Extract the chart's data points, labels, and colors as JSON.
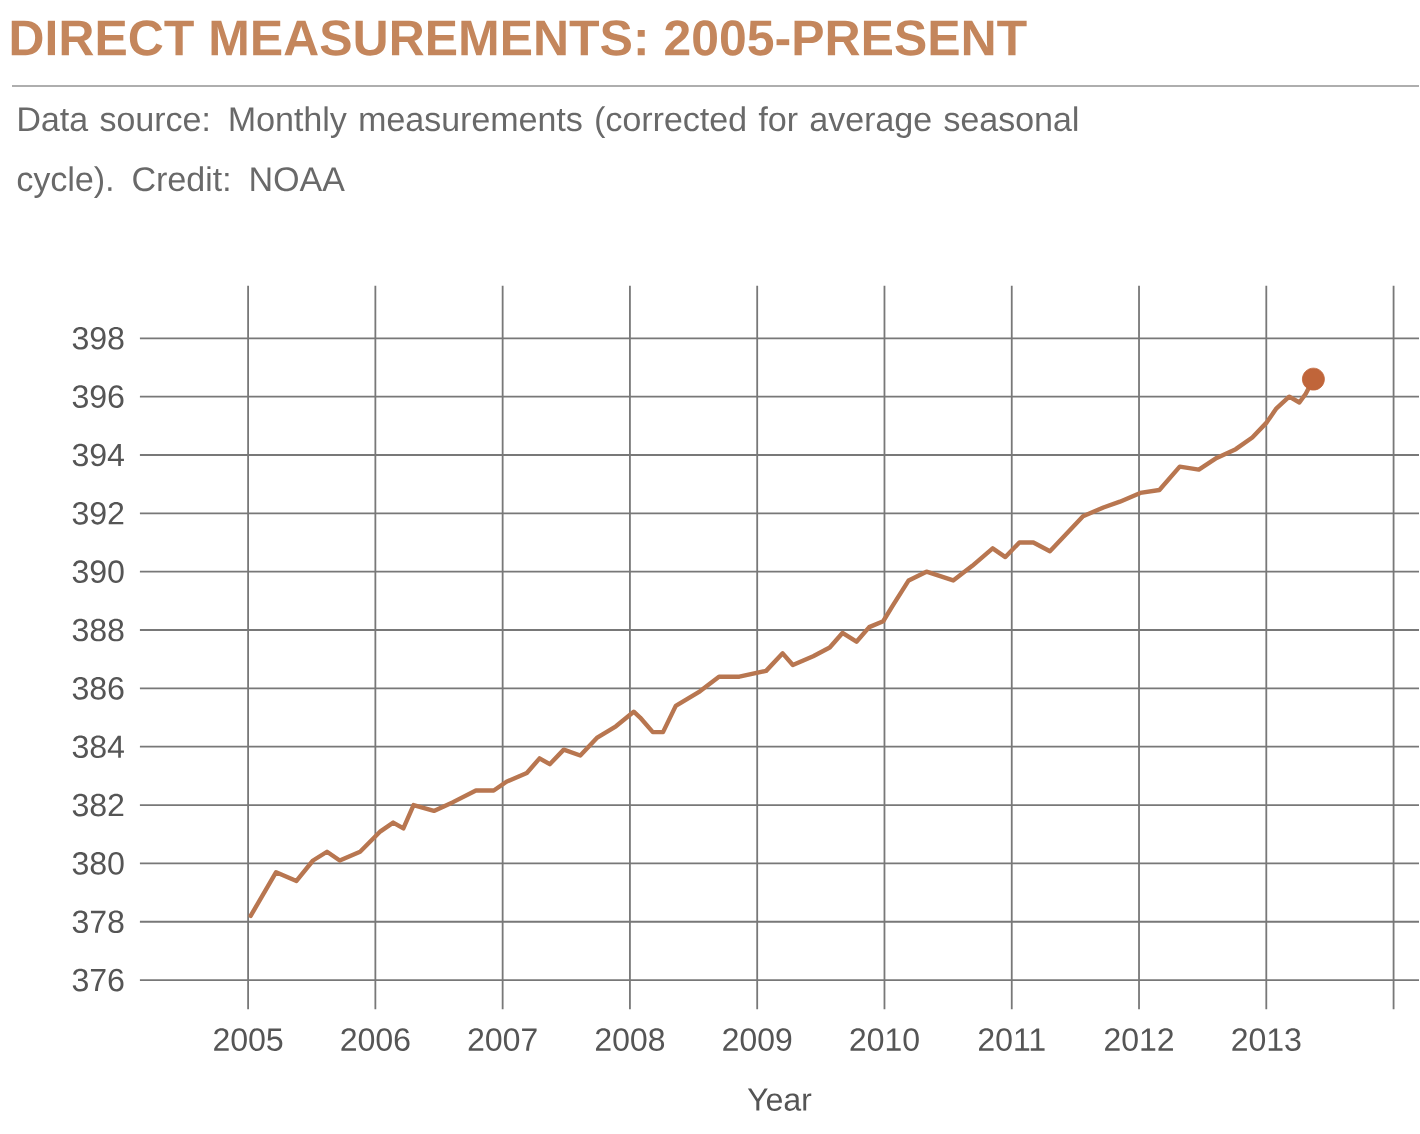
{
  "chart_data": {
    "type": "line",
    "title": "DIRECT MEASUREMENTS: 2005-PRESENT",
    "subtitle": "Data source: Monthly measurements (corrected for average seasonal cycle). Credit: NOAA",
    "xlabel": "Year",
    "xlim": [
      2004.15,
      2014.2
    ],
    "ylim": [
      375,
      399.8
    ],
    "xticks": [
      2005,
      2006,
      2007,
      2008,
      2009,
      2010,
      2011,
      2012,
      2013,
      {
        "value": 2014,
        "label": null
      }
    ],
    "yticks": [
      376,
      378,
      380,
      382,
      384,
      386,
      388,
      390,
      392,
      394,
      396,
      398
    ],
    "grid": true,
    "series": [
      {
        "type": "line",
        "color": "#b87650",
        "x": [
          2005.02,
          2005.22,
          2005.38,
          2005.51,
          2005.62,
          2005.72,
          2005.88,
          2006.04,
          2006.14,
          2006.22,
          2006.3,
          2006.46,
          2006.61,
          2006.79,
          2006.93,
          2007.03,
          2007.19,
          2007.29,
          2007.37,
          2007.48,
          2007.61,
          2007.74,
          2007.89,
          2008.03,
          2008.08,
          2008.18,
          2008.26,
          2008.36,
          2008.55,
          2008.7,
          2008.86,
          2009.07,
          2009.2,
          2009.28,
          2009.44,
          2009.57,
          2009.67,
          2009.78,
          2009.88,
          2009.99,
          2010.06,
          2010.19,
          2010.33,
          2010.54,
          2010.69,
          2010.85,
          2010.95,
          2011.06,
          2011.17,
          2011.3,
          2011.43,
          2011.56,
          2011.72,
          2011.85,
          2012.01,
          2012.16,
          2012.32,
          2012.47,
          2012.61,
          2012.76,
          2012.89,
          2013.0,
          2013.08,
          2013.18,
          2013.26,
          2013.31,
          2013.37
        ],
        "values": [
          378.2,
          379.7,
          379.4,
          380.1,
          380.4,
          380.1,
          380.4,
          381.1,
          381.4,
          381.2,
          382.0,
          381.8,
          382.1,
          382.5,
          382.5,
          382.8,
          383.1,
          383.6,
          383.4,
          383.9,
          383.7,
          384.3,
          384.7,
          385.2,
          385.0,
          384.5,
          384.5,
          385.4,
          385.9,
          386.4,
          386.4,
          386.6,
          387.2,
          386.8,
          387.1,
          387.4,
          387.9,
          387.6,
          388.1,
          388.3,
          388.8,
          389.7,
          390.0,
          389.7,
          390.2,
          390.8,
          390.5,
          391.0,
          391.0,
          390.7,
          391.3,
          391.9,
          392.2,
          392.4,
          392.7,
          392.8,
          393.6,
          393.5,
          393.9,
          394.2,
          394.6,
          395.1,
          395.6,
          396.0,
          395.8,
          396.1,
          396.6
        ]
      },
      {
        "type": "scatter",
        "color": "#c0653a",
        "marker": "circle",
        "x": [
          2013.37
        ],
        "values": [
          396.6
        ]
      }
    ]
  }
}
